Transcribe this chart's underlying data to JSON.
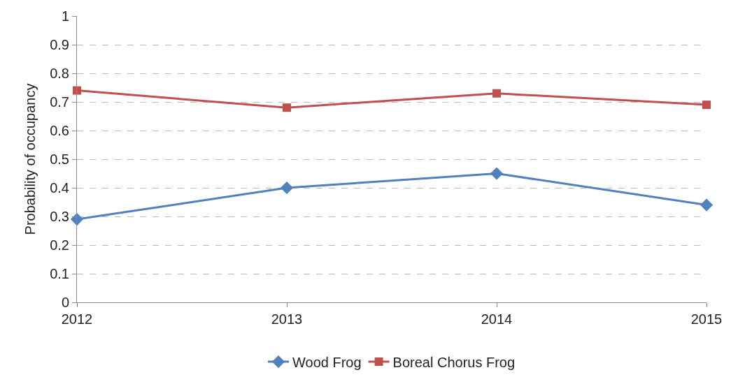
{
  "chart_data": {
    "type": "line",
    "ylabel": "Probability of occupancy",
    "x": [
      2012,
      2013,
      2014,
      2015
    ],
    "xlim": [
      2012,
      2015
    ],
    "xticks": [
      2012,
      2013,
      2014,
      2015
    ],
    "ylim": [
      0,
      1
    ],
    "yticks": [
      0,
      0.1,
      0.2,
      0.3,
      0.4,
      0.5,
      0.6,
      0.7,
      0.8,
      0.9,
      1
    ],
    "series": [
      {
        "name": "Wood Frog",
        "color": "#4f81bd",
        "marker": "diamond",
        "values": [
          0.29,
          0.4,
          0.45,
          0.34
        ]
      },
      {
        "name": "Boreal Chorus Frog",
        "color": "#c0504d",
        "marker": "square",
        "values": [
          0.74,
          0.68,
          0.73,
          0.69
        ]
      }
    ],
    "grid": "y",
    "legend": "bottom",
    "line_style": "solid"
  }
}
